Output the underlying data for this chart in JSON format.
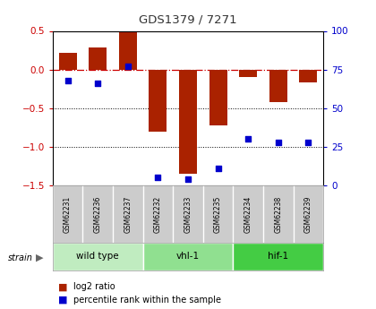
{
  "title": "GDS1379 / 7271",
  "samples": [
    "GSM62231",
    "GSM62236",
    "GSM62237",
    "GSM62232",
    "GSM62233",
    "GSM62235",
    "GSM62234",
    "GSM62238",
    "GSM62239"
  ],
  "log2_ratio": [
    0.22,
    0.28,
    0.5,
    -0.8,
    -1.35,
    -0.72,
    -0.1,
    -0.42,
    -0.17
  ],
  "percentile_rank": [
    68,
    66,
    77,
    5,
    4,
    11,
    30,
    28,
    28
  ],
  "ylim": [
    -1.5,
    0.5
  ],
  "right_ylim": [
    0,
    100
  ],
  "groups": [
    {
      "label": "wild type",
      "start": 0,
      "end": 3,
      "color": "#c0ecc0"
    },
    {
      "label": "vhl-1",
      "start": 3,
      "end": 6,
      "color": "#90e090"
    },
    {
      "label": "hif-1",
      "start": 6,
      "end": 9,
      "color": "#44cc44"
    }
  ],
  "bar_color": "#aa2200",
  "dot_color": "#0000cc",
  "zero_line_color": "#cc0000",
  "dotted_line_color": "#000000",
  "title_color": "#333333",
  "bg_color": "#ffffff",
  "label_bg": "#cccccc"
}
